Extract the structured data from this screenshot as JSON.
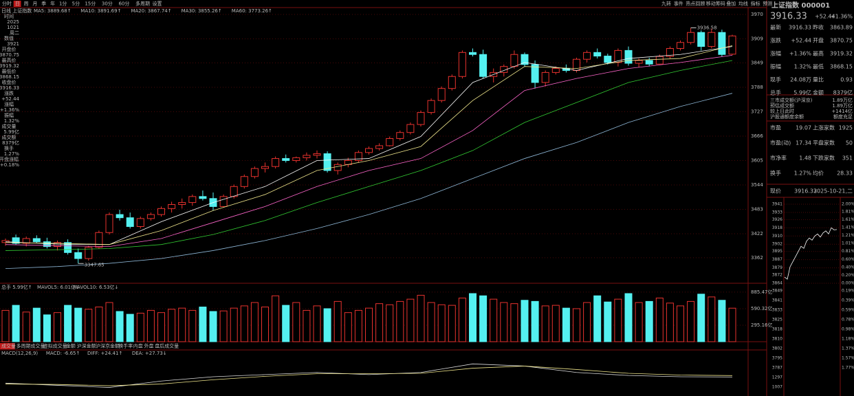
{
  "toolbar": {
    "tabs": [
      "分时",
      "日",
      "周",
      "月",
      "季",
      "年",
      "1分",
      "5分",
      "15分",
      "30分",
      "60分",
      "多周期",
      "设置"
    ],
    "active_tab": 1,
    "tools": [
      "九转",
      "事件",
      "热点回顾",
      "移动筹码",
      "叠加",
      "均线",
      "指标",
      "预测"
    ]
  },
  "sidebar": [
    {
      "label": "时间",
      "values": [
        "2025",
        "1021",
        "周二"
      ]
    },
    {
      "label": "数值",
      "values": [
        "3921"
      ]
    },
    {
      "label": "开盘价",
      "values": [
        "3870.75"
      ]
    },
    {
      "label": "最高价",
      "values": [
        "3919.32"
      ]
    },
    {
      "label": "最低价",
      "values": [
        "3868.15"
      ]
    },
    {
      "label": "收盘价",
      "values": [
        "3916.33"
      ]
    },
    {
      "label": "涨跌",
      "values": [
        "+52.44"
      ]
    },
    {
      "label": "涨幅",
      "values": [
        "+1.36%"
      ]
    },
    {
      "label": "振幅",
      "values": [
        "1.32%"
      ]
    },
    {
      "label": "成交量",
      "values": [
        "5.99亿"
      ]
    },
    {
      "label": "成交额",
      "values": [
        "8379亿"
      ]
    },
    {
      "label": "换手",
      "values": [
        "1.27%"
      ]
    },
    {
      "label": "开盘涨幅",
      "values": [
        "+0.18%"
      ]
    }
  ],
  "chart_data": {
    "type": "candlestick",
    "legend_prefix": "日线 上证指数",
    "ylim": [
      3301.7,
      3985.5
    ],
    "yticks": [
      3970,
      3909,
      3849,
      3788,
      3727,
      3666,
      3605,
      3544,
      3483,
      3422,
      3362
    ],
    "grid": true,
    "up_color": "#e8322e",
    "down_color": "#54f0f0",
    "annotations": [
      3936.58,
      3347.65
    ],
    "candles": [
      [
        3400,
        3410,
        3392,
        3405
      ],
      [
        3412,
        3420,
        3395,
        3398
      ],
      [
        3398,
        3415,
        3390,
        3410
      ],
      [
        3410,
        3418,
        3398,
        3402
      ],
      [
        3402,
        3412,
        3385,
        3390
      ],
      [
        3390,
        3405,
        3380,
        3400
      ],
      [
        3400,
        3408,
        3370,
        3375
      ],
      [
        3375,
        3385,
        3347.65,
        3360
      ],
      [
        3360,
        3392,
        3355,
        3388
      ],
      [
        3388,
        3430,
        3385,
        3425
      ],
      [
        3425,
        3475,
        3420,
        3470
      ],
      [
        3470,
        3482,
        3455,
        3462
      ],
      [
        3462,
        3475,
        3435,
        3440
      ],
      [
        3440,
        3465,
        3435,
        3460
      ],
      [
        3460,
        3475,
        3455,
        3470
      ],
      [
        3470,
        3490,
        3465,
        3485
      ],
      [
        3485,
        3502,
        3475,
        3495
      ],
      [
        3495,
        3510,
        3485,
        3500
      ],
      [
        3500,
        3520,
        3492,
        3515
      ],
      [
        3515,
        3530,
        3505,
        3510
      ],
      [
        3510,
        3525,
        3480,
        3490
      ],
      [
        3490,
        3520,
        3488,
        3515
      ],
      [
        3515,
        3545,
        3510,
        3540
      ],
      [
        3540,
        3570,
        3535,
        3565
      ],
      [
        3565,
        3590,
        3560,
        3585
      ],
      [
        3585,
        3600,
        3575,
        3590
      ],
      [
        3590,
        3615,
        3585,
        3610
      ],
      [
        3610,
        3620,
        3600,
        3605
      ],
      [
        3605,
        3615,
        3600,
        3612
      ],
      [
        3612,
        3625,
        3605,
        3618
      ],
      [
        3618,
        3630,
        3610,
        3622
      ],
      [
        3622,
        3628,
        3575,
        3580
      ],
      [
        3580,
        3600,
        3570,
        3595
      ],
      [
        3595,
        3612,
        3588,
        3605
      ],
      [
        3605,
        3630,
        3600,
        3625
      ],
      [
        3625,
        3640,
        3620,
        3635
      ],
      [
        3635,
        3648,
        3630,
        3642
      ],
      [
        3642,
        3665,
        3640,
        3660
      ],
      [
        3660,
        3680,
        3655,
        3675
      ],
      [
        3675,
        3700,
        3670,
        3695
      ],
      [
        3695,
        3730,
        3690,
        3725
      ],
      [
        3725,
        3760,
        3720,
        3755
      ],
      [
        3755,
        3790,
        3750,
        3785
      ],
      [
        3785,
        3820,
        3780,
        3815
      ],
      [
        3815,
        3880,
        3810,
        3875
      ],
      [
        3875,
        3885,
        3865,
        3870
      ],
      [
        3870,
        3882,
        3810,
        3815
      ],
      [
        3815,
        3835,
        3800,
        3825
      ],
      [
        3825,
        3845,
        3815,
        3840
      ],
      [
        3840,
        3880,
        3835,
        3870
      ],
      [
        3870,
        3875,
        3840,
        3845
      ],
      [
        3845,
        3855,
        3785,
        3800
      ],
      [
        3800,
        3830,
        3790,
        3825
      ],
      [
        3825,
        3840,
        3820,
        3835
      ],
      [
        3835,
        3845,
        3825,
        3830
      ],
      [
        3830,
        3862,
        3825,
        3858
      ],
      [
        3858,
        3880,
        3850,
        3875
      ],
      [
        3875,
        3885,
        3860,
        3866
      ],
      [
        3866,
        3872,
        3845,
        3850
      ],
      [
        3850,
        3885,
        3840,
        3880
      ],
      [
        3880,
        3890,
        3842,
        3848
      ],
      [
        3848,
        3860,
        3838,
        3855
      ],
      [
        3855,
        3862,
        3840,
        3846
      ],
      [
        3846,
        3870,
        3845,
        3865
      ],
      [
        3865,
        3890,
        3860,
        3885
      ],
      [
        3885,
        3905,
        3880,
        3900
      ],
      [
        3900,
        3936.58,
        3895,
        3925
      ],
      [
        3925,
        3930,
        3880,
        3890
      ],
      [
        3890,
        3935,
        3885,
        3925
      ],
      [
        3925,
        3932,
        3865,
        3870
      ],
      [
        3870.75,
        3919.32,
        3868.15,
        3916.33
      ]
    ],
    "ma_lines": [
      {
        "name": "MA5: 3889.68↑",
        "color": "#ffffff",
        "x": [
          0,
          5,
          10,
          15,
          20,
          25,
          30,
          35,
          40,
          45,
          50,
          55,
          60,
          65,
          70
        ],
        "values": [
          3402,
          3396,
          3395,
          3452,
          3500,
          3540,
          3605,
          3610,
          3665,
          3800,
          3850,
          3830,
          3860,
          3870,
          3890
        ]
      },
      {
        "name": "MA10: 3891.69↑",
        "color": "#f0e68c",
        "x": [
          0,
          5,
          10,
          15,
          20,
          25,
          30,
          35,
          40,
          45,
          50,
          55,
          60,
          65,
          70
        ],
        "values": [
          3400,
          3398,
          3395,
          3430,
          3480,
          3520,
          3580,
          3605,
          3640,
          3755,
          3840,
          3835,
          3855,
          3860,
          3892
        ]
      },
      {
        "name": "MA20: 3867.74↑",
        "color": "#ff66cc",
        "x": [
          0,
          5,
          10,
          15,
          20,
          25,
          30,
          35,
          40,
          45,
          50,
          55,
          60,
          65,
          70
        ],
        "values": [
          3395,
          3392,
          3390,
          3410,
          3450,
          3490,
          3540,
          3580,
          3610,
          3680,
          3780,
          3810,
          3835,
          3850,
          3868
        ]
      },
      {
        "name": "MA30: 3855.26↑",
        "color": "#33cc33",
        "x": [
          0,
          5,
          10,
          15,
          20,
          25,
          30,
          35,
          40,
          45,
          50,
          55,
          60,
          65,
          70
        ],
        "values": [
          3380,
          3382,
          3385,
          3395,
          3420,
          3455,
          3500,
          3540,
          3580,
          3630,
          3700,
          3750,
          3800,
          3830,
          3855
        ]
      },
      {
        "name": "MA60: 3773.26↑",
        "color": "#8fb8d8",
        "x": [
          0,
          5,
          10,
          15,
          20,
          25,
          30,
          35,
          40,
          45,
          50,
          55,
          60,
          65,
          70
        ],
        "values": [
          3335,
          3340,
          3348,
          3360,
          3380,
          3405,
          3435,
          3470,
          3510,
          3560,
          3610,
          3650,
          3700,
          3740,
          3773
        ]
      }
    ]
  },
  "volume": {
    "legend": [
      "总手 5.99亿↑",
      "MAVOL5: 6.01亿↓",
      "MAVOL10: 6.53亿↓"
    ],
    "ylim": [
      0,
      946
    ],
    "yticks": [
      {
        "value": 885.47,
        "label": "885.47亿"
      },
      {
        "value": 590.32,
        "label": "590.32亿"
      },
      {
        "value": 295.16,
        "label": "295.16亿"
      }
    ],
    "values": [
      560,
      650,
      530,
      600,
      480,
      520,
      650,
      600,
      580,
      620,
      700,
      540,
      490,
      510,
      560,
      520,
      580,
      600,
      560,
      620,
      540,
      550,
      600,
      640,
      700,
      620,
      820,
      650,
      700,
      560,
      640,
      590,
      720,
      520,
      560,
      600,
      680,
      660,
      720,
      760,
      830,
      700,
      660,
      650,
      780,
      860,
      820,
      760,
      700,
      680,
      740,
      720,
      640,
      650,
      600,
      590,
      700,
      820,
      710,
      760,
      860,
      700,
      720,
      780,
      690,
      640,
      720,
      850,
      800,
      740,
      599
    ]
  },
  "volume_tabs": [
    "成交量",
    "多周期成交量",
    "虚拟成交量",
    "金额",
    "沪深金额",
    "沪深京金额",
    "换手率",
    "内盘",
    "外盘",
    "盘后成交量"
  ],
  "macd": {
    "legend": [
      "MACD(12,26,9)",
      "MACD: -6.65↑",
      "DIFF: +24.41↑",
      "DEA: +27.73↓"
    ],
    "ylim": [
      -20,
      70
    ],
    "x": [
      0,
      5,
      10,
      15,
      20,
      25,
      30,
      35,
      40,
      45,
      50,
      55,
      60,
      65,
      70
    ],
    "diff": [
      10,
      5,
      0,
      15,
      25,
      30,
      35,
      30,
      35,
      55,
      50,
      35,
      28,
      25,
      24.41
    ],
    "dea": [
      8,
      7,
      4,
      8,
      18,
      26,
      32,
      32,
      33,
      45,
      50,
      42,
      33,
      29,
      27.73
    ]
  },
  "quote": {
    "title": "上证指数 000001",
    "price": "3916.33",
    "change": "+52.44",
    "pct": "+1.36%",
    "rows": [
      [
        "最新",
        "3916.33",
        "昨收",
        "3863.89"
      ],
      [
        "涨跌",
        "+52.44",
        "开盘",
        "3870.75"
      ],
      [
        "涨幅",
        "+1.36%",
        "最高",
        "3919.32"
      ],
      [
        "振幅",
        "1.32%",
        "最低",
        "3868.15"
      ],
      [
        "现手",
        "24.08万",
        "量比",
        "0.93"
      ],
      [
        "总手",
        "5.99亿",
        "金额",
        "8379亿"
      ]
    ],
    "market_rows": [
      [
        "三市成交额(沪深京)",
        "1.89万亿"
      ],
      [
        "预估成交额",
        "1.89万亿"
      ],
      [
        "较上日此时",
        "+1414亿"
      ],
      [
        "沪股通额度余额",
        "额度充足"
      ]
    ],
    "ratio_rows": [
      [
        "市盈",
        "19.07",
        "上涨家数",
        "1925"
      ],
      [
        "市盈(动)",
        "17.34",
        "平盘家数",
        "50"
      ],
      [
        "市净率",
        "1.48",
        "下跌家数",
        "351"
      ],
      [
        "换手",
        "1.27%",
        "均价",
        "28.33"
      ]
    ],
    "footer": [
      "现价",
      "3916.33",
      "2025-10-21,二"
    ]
  },
  "intraday": {
    "ylim": [
      3864,
      3941
    ],
    "yticks": [
      3941,
      3933,
      3926,
      3918,
      3910,
      3902,
      3895,
      3887,
      3879,
      3872,
      3864
    ],
    "pct_lim": [
      0,
      2
    ],
    "pct_ticks": [
      {
        "value": 2,
        "label": "2.00%"
      },
      {
        "value": 1.81,
        "label": "1.81%"
      },
      {
        "value": 1.61,
        "label": "1.61%"
      },
      {
        "value": 1.41,
        "label": "1.41%"
      },
      {
        "value": 1.21,
        "label": "1.21%"
      },
      {
        "value": 1.01,
        "label": "1.01%"
      },
      {
        "value": 0.81,
        "label": "0.81%"
      },
      {
        "value": 0.6,
        "label": "0.60%"
      },
      {
        "value": 0.4,
        "label": "0.40%"
      },
      {
        "value": 0.2,
        "label": "0.20%"
      },
      {
        "value": 0,
        "label": "0.00%"
      }
    ],
    "values": [
      3870,
      3868,
      3880,
      3885,
      3890,
      3895,
      3900,
      3898,
      3905,
      3908,
      3906,
      3910,
      3912,
      3909,
      3913,
      3915,
      3912,
      3918,
      3916,
      3916.33
    ],
    "lower_labels": [
      "3849",
      "3841",
      "3833",
      "3825",
      "3818",
      "3810",
      "3802",
      "3795",
      "3787",
      "1297",
      "1007"
    ],
    "lower_pct_labels": [
      "0.19%",
      "0.39%",
      "0.59%",
      "0.78%",
      "0.98%",
      "1.18%",
      "1.37%",
      "1.57%",
      "1.77%"
    ]
  }
}
